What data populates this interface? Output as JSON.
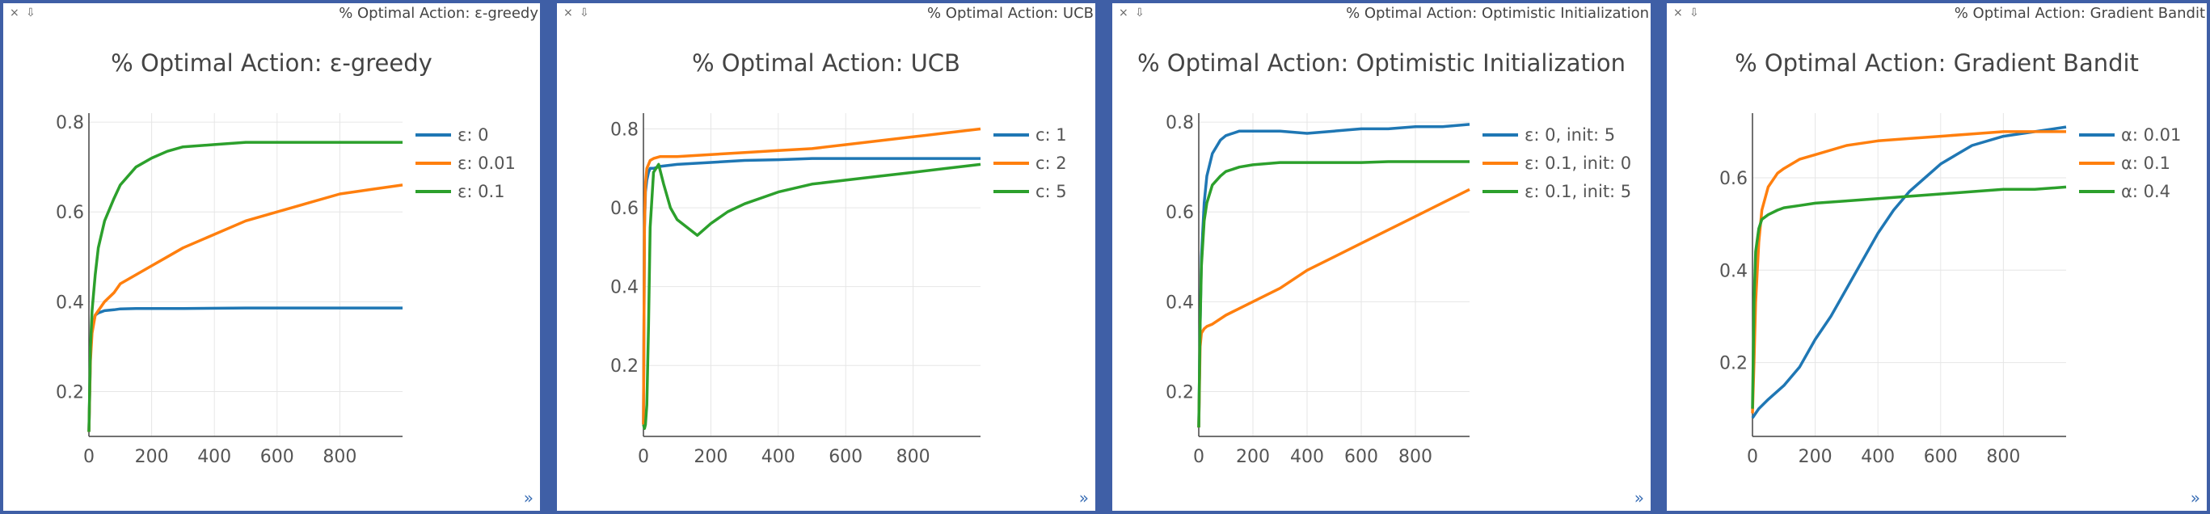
{
  "panels": [
    {
      "window_title": "% Optimal Action: ε-greedy",
      "close_icon": "×",
      "pin_icon": "⇩",
      "expand_icon": "»",
      "chart_data": {
        "type": "line",
        "title": "% Optimal Action: ε-greedy",
        "xlabel": "",
        "ylabel": "",
        "xlim": [
          0,
          1000
        ],
        "ylim": [
          0.1,
          0.82
        ],
        "xticks": [
          0,
          200,
          400,
          600,
          800
        ],
        "yticks": [
          0.2,
          0.4,
          0.6,
          0.8
        ],
        "grid": true,
        "legend_position": "right",
        "series": [
          {
            "name": "ε: 0",
            "color": "#1f77b4",
            "x": [
              0,
              5,
              10,
              20,
              30,
              50,
              80,
              100,
              150,
              200,
              300,
              500,
              700,
              1000
            ],
            "y": [
              0.11,
              0.28,
              0.34,
              0.37,
              0.375,
              0.38,
              0.382,
              0.384,
              0.385,
              0.385,
              0.385,
              0.386,
              0.386,
              0.386
            ]
          },
          {
            "name": "ε: 0.01",
            "color": "#ff7f0e",
            "x": [
              0,
              5,
              10,
              20,
              30,
              50,
              80,
              100,
              150,
              200,
              250,
              300,
              400,
              500,
              600,
              700,
              800,
              900,
              1000
            ],
            "y": [
              0.11,
              0.27,
              0.33,
              0.37,
              0.38,
              0.4,
              0.42,
              0.44,
              0.46,
              0.48,
              0.5,
              0.52,
              0.55,
              0.58,
              0.6,
              0.62,
              0.64,
              0.65,
              0.66
            ]
          },
          {
            "name": "ε: 0.1",
            "color": "#2ca02c",
            "x": [
              0,
              5,
              10,
              20,
              30,
              50,
              80,
              100,
              150,
              200,
              250,
              300,
              400,
              500,
              600,
              700,
              800,
              900,
              1000
            ],
            "y": [
              0.11,
              0.3,
              0.38,
              0.46,
              0.52,
              0.58,
              0.63,
              0.66,
              0.7,
              0.72,
              0.735,
              0.745,
              0.75,
              0.755,
              0.755,
              0.755,
              0.755,
              0.755,
              0.755
            ]
          }
        ]
      }
    },
    {
      "window_title": "% Optimal Action: UCB",
      "close_icon": "×",
      "pin_icon": "⇩",
      "expand_icon": "»",
      "chart_data": {
        "type": "line",
        "title": "% Optimal Action: UCB",
        "xlabel": "",
        "ylabel": "",
        "xlim": [
          0,
          1000
        ],
        "ylim": [
          0.02,
          0.84
        ],
        "xticks": [
          0,
          200,
          400,
          600,
          800
        ],
        "yticks": [
          0.2,
          0.4,
          0.6,
          0.8
        ],
        "grid": true,
        "legend_position": "right",
        "series": [
          {
            "name": "c: 1",
            "color": "#1f77b4",
            "x": [
              0,
              3,
              6,
              10,
              15,
              20,
              30,
              50,
              100,
              200,
              300,
              400,
              500,
              600,
              700,
              800,
              900,
              1000
            ],
            "y": [
              0.05,
              0.55,
              0.64,
              0.67,
              0.69,
              0.7,
              0.7,
              0.705,
              0.71,
              0.715,
              0.72,
              0.722,
              0.725,
              0.725,
              0.725,
              0.725,
              0.725,
              0.725
            ]
          },
          {
            "name": "c: 2",
            "color": "#ff7f0e",
            "x": [
              0,
              3,
              6,
              10,
              15,
              20,
              30,
              50,
              100,
              200,
              300,
              400,
              500,
              600,
              700,
              800,
              900,
              1000
            ],
            "y": [
              0.05,
              0.55,
              0.66,
              0.7,
              0.71,
              0.72,
              0.725,
              0.73,
              0.73,
              0.735,
              0.74,
              0.745,
              0.75,
              0.76,
              0.77,
              0.78,
              0.79,
              0.8
            ]
          },
          {
            "name": "c: 5",
            "color": "#2ca02c",
            "x": [
              0,
              3,
              6,
              10,
              15,
              20,
              30,
              45,
              60,
              80,
              100,
              130,
              160,
              200,
              250,
              300,
              400,
              500,
              600,
              700,
              800,
              900,
              1000
            ],
            "y": [
              0.05,
              0.04,
              0.05,
              0.1,
              0.3,
              0.55,
              0.69,
              0.71,
              0.66,
              0.6,
              0.57,
              0.55,
              0.53,
              0.56,
              0.59,
              0.61,
              0.64,
              0.66,
              0.67,
              0.68,
              0.69,
              0.7,
              0.71
            ]
          }
        ]
      }
    },
    {
      "window_title": "% Optimal Action: Optimistic Initialization",
      "close_icon": "×",
      "pin_icon": "⇩",
      "expand_icon": "»",
      "chart_data": {
        "type": "line",
        "title": "% Optimal Action: Optimistic Initialization",
        "xlabel": "",
        "ylabel": "",
        "xlim": [
          0,
          1000
        ],
        "ylim": [
          0.1,
          0.82
        ],
        "xticks": [
          0,
          200,
          400,
          600,
          800
        ],
        "yticks": [
          0.2,
          0.4,
          0.6,
          0.8
        ],
        "grid": true,
        "legend_position": "right",
        "series": [
          {
            "name": "ε: 0, init: 5",
            "color": "#1f77b4",
            "x": [
              0,
              5,
              10,
              20,
              30,
              50,
              80,
              100,
              150,
              200,
              300,
              400,
              500,
              600,
              700,
              800,
              900,
              1000
            ],
            "y": [
              0.12,
              0.35,
              0.5,
              0.62,
              0.68,
              0.73,
              0.76,
              0.77,
              0.78,
              0.78,
              0.78,
              0.775,
              0.78,
              0.785,
              0.785,
              0.79,
              0.79,
              0.795
            ]
          },
          {
            "name": "ε: 0.1, init: 0",
            "color": "#ff7f0e",
            "x": [
              0,
              5,
              10,
              20,
              30,
              50,
              100,
              200,
              300,
              400,
              500,
              600,
              700,
              800,
              900,
              1000
            ],
            "y": [
              0.12,
              0.3,
              0.33,
              0.34,
              0.345,
              0.35,
              0.37,
              0.4,
              0.43,
              0.47,
              0.5,
              0.53,
              0.56,
              0.59,
              0.62,
              0.65
            ]
          },
          {
            "name": "ε: 0.1, init: 5",
            "color": "#2ca02c",
            "x": [
              0,
              5,
              10,
              20,
              30,
              50,
              80,
              100,
              150,
              200,
              300,
              400,
              500,
              600,
              700,
              800,
              900,
              1000
            ],
            "y": [
              0.12,
              0.35,
              0.48,
              0.58,
              0.62,
              0.66,
              0.68,
              0.69,
              0.7,
              0.705,
              0.71,
              0.71,
              0.71,
              0.71,
              0.712,
              0.712,
              0.712,
              0.712
            ]
          }
        ]
      }
    },
    {
      "window_title": "% Optimal Action: Gradient Bandit",
      "close_icon": "×",
      "pin_icon": "⇩",
      "expand_icon": "»",
      "chart_data": {
        "type": "line",
        "title": "% Optimal Action: Gradient Bandit",
        "xlabel": "",
        "ylabel": "",
        "xlim": [
          0,
          1000
        ],
        "ylim": [
          0.04,
          0.74
        ],
        "xticks": [
          0,
          200,
          400,
          600,
          800
        ],
        "yticks": [
          0.2,
          0.4,
          0.6
        ],
        "grid": true,
        "legend_position": "right",
        "series": [
          {
            "name": "α: 0.01",
            "color": "#1f77b4",
            "x": [
              0,
              20,
              50,
              100,
              150,
              200,
              250,
              300,
              350,
              400,
              450,
              500,
              550,
              600,
              650,
              700,
              800,
              900,
              1000
            ],
            "y": [
              0.08,
              0.1,
              0.12,
              0.15,
              0.19,
              0.25,
              0.3,
              0.36,
              0.42,
              0.48,
              0.53,
              0.57,
              0.6,
              0.63,
              0.65,
              0.67,
              0.69,
              0.7,
              0.71
            ]
          },
          {
            "name": "α: 0.1",
            "color": "#ff7f0e",
            "x": [
              0,
              5,
              10,
              20,
              30,
              50,
              80,
              100,
              150,
              200,
              300,
              400,
              500,
              600,
              700,
              800,
              900,
              1000
            ],
            "y": [
              0.09,
              0.2,
              0.33,
              0.46,
              0.53,
              0.58,
              0.61,
              0.62,
              0.64,
              0.65,
              0.67,
              0.68,
              0.685,
              0.69,
              0.695,
              0.7,
              0.7,
              0.7
            ]
          },
          {
            "name": "α: 0.4",
            "color": "#2ca02c",
            "x": [
              0,
              5,
              10,
              20,
              30,
              50,
              80,
              100,
              150,
              200,
              300,
              400,
              500,
              600,
              700,
              800,
              900,
              1000
            ],
            "y": [
              0.1,
              0.33,
              0.44,
              0.49,
              0.51,
              0.52,
              0.53,
              0.535,
              0.54,
              0.545,
              0.55,
              0.555,
              0.56,
              0.565,
              0.57,
              0.575,
              0.575,
              0.58
            ]
          }
        ]
      }
    }
  ]
}
